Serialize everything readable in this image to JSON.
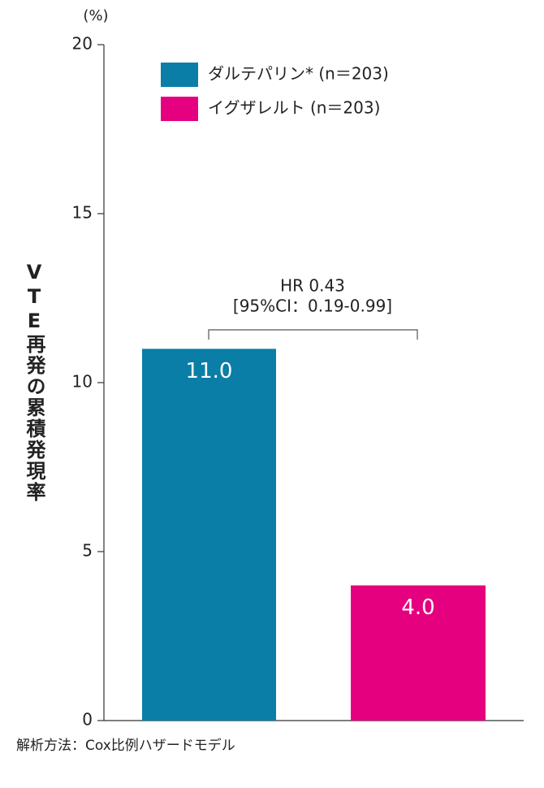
{
  "chart_data": {
    "type": "bar",
    "y_unit": "(%)",
    "y_label": "VTE再発の累積発現率",
    "series": [
      {
        "name": "ダルテパリン* (n＝203)",
        "color": "#0a7ea6",
        "values": [
          11.0
        ],
        "value_labels": [
          "11.0"
        ]
      },
      {
        "name": "イグザレルト (n＝203)",
        "color": "#e4007f",
        "values": [
          4.0
        ],
        "value_labels": [
          "4.0"
        ]
      }
    ],
    "ylim": [
      0,
      20
    ],
    "yticks": [
      0,
      5,
      10,
      15,
      20
    ],
    "annotations": [
      "HR 0.43",
      "[95%CI：0.19-0.99]"
    ],
    "footnote": "解析方法：Cox比例ハザードモデル",
    "legend": "top-left"
  }
}
